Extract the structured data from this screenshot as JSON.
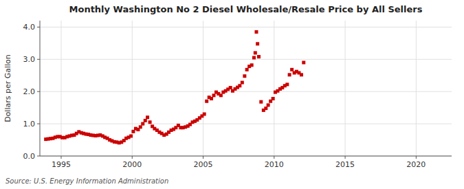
{
  "chart_data": {
    "type": "scatter",
    "title": "Monthly Washington No 2 Diesel Wholesale/Resale Price by All Sellers",
    "y_label": "Dollars per Gallon",
    "annotations": [
      "Source: U.S. Energy Information Administration"
    ],
    "color": "#cc0000",
    "marker": "square",
    "grid": true,
    "xlim": [
      1993.5,
      2022.5
    ],
    "ylim": [
      0.0,
      4.2
    ],
    "xticks": [
      1995,
      2000,
      2005,
      2010,
      2015,
      2020
    ],
    "yticks": [
      {
        "value": 0.0,
        "label": "0.0"
      },
      {
        "value": 1.0,
        "label": "1.0"
      },
      {
        "value": 2.0,
        "label": "2.0"
      },
      {
        "value": 3.0,
        "label": "3.0"
      },
      {
        "value": 4.0,
        "label": "4.0"
      }
    ],
    "x": [
      1993.92,
      1994.08,
      1994.25,
      1994.42,
      1994.58,
      1994.75,
      1994.92,
      1995.08,
      1995.25,
      1995.42,
      1995.58,
      1995.75,
      1995.92,
      1996.08,
      1996.25,
      1996.42,
      1996.58,
      1996.75,
      1996.92,
      1997.08,
      1997.25,
      1997.42,
      1997.58,
      1997.75,
      1997.92,
      1998.08,
      1998.25,
      1998.42,
      1998.58,
      1998.75,
      1998.92,
      1999.08,
      1999.25,
      1999.42,
      1999.58,
      1999.75,
      1999.92,
      2000.08,
      2000.25,
      2000.42,
      2000.58,
      2000.75,
      2000.92,
      2001.08,
      2001.25,
      2001.42,
      2001.58,
      2001.75,
      2001.92,
      2002.08,
      2002.25,
      2002.42,
      2002.58,
      2002.75,
      2002.92,
      2003.08,
      2003.25,
      2003.42,
      2003.58,
      2003.75,
      2003.92,
      2004.08,
      2004.25,
      2004.42,
      2004.58,
      2004.75,
      2004.92,
      2005.08,
      2005.25,
      2005.42,
      2005.58,
      2005.75,
      2005.92,
      2006.08,
      2006.25,
      2006.42,
      2006.58,
      2006.75,
      2006.92,
      2007.08,
      2007.25,
      2007.42,
      2007.58,
      2007.75,
      2007.92,
      2008.08,
      2008.25,
      2008.42,
      2008.58,
      2008.67,
      2008.75,
      2008.83,
      2008.92,
      2009.08,
      2009.25,
      2009.42,
      2009.58,
      2009.75,
      2009.92,
      2010.08,
      2010.25,
      2010.42,
      2010.58,
      2010.75,
      2010.92,
      2011.08,
      2011.25,
      2011.42,
      2011.58,
      2011.75,
      2011.92,
      2012.08
    ],
    "values": [
      0.52,
      0.53,
      0.54,
      0.55,
      0.58,
      0.6,
      0.6,
      0.57,
      0.57,
      0.6,
      0.62,
      0.64,
      0.65,
      0.7,
      0.75,
      0.72,
      0.7,
      0.68,
      0.67,
      0.65,
      0.64,
      0.63,
      0.64,
      0.65,
      0.62,
      0.58,
      0.55,
      0.5,
      0.47,
      0.44,
      0.43,
      0.41,
      0.43,
      0.48,
      0.55,
      0.58,
      0.62,
      0.76,
      0.85,
      0.82,
      0.9,
      1.0,
      1.1,
      1.2,
      1.05,
      0.92,
      0.85,
      0.8,
      0.74,
      0.7,
      0.65,
      0.68,
      0.74,
      0.8,
      0.83,
      0.88,
      0.95,
      0.88,
      0.88,
      0.9,
      0.93,
      0.98,
      1.05,
      1.08,
      1.12,
      1.18,
      1.24,
      1.3,
      1.7,
      1.82,
      1.78,
      1.88,
      1.98,
      1.93,
      1.88,
      1.98,
      2.02,
      2.07,
      2.12,
      2.02,
      2.08,
      2.13,
      2.18,
      2.28,
      2.48,
      2.68,
      2.78,
      2.82,
      3.05,
      3.2,
      3.85,
      3.48,
      3.08,
      1.68,
      1.42,
      1.48,
      1.58,
      1.7,
      1.78,
      1.98,
      2.02,
      2.08,
      2.12,
      2.18,
      2.22,
      2.52,
      2.68,
      2.58,
      2.62,
      2.58,
      2.52,
      2.9
    ]
  }
}
